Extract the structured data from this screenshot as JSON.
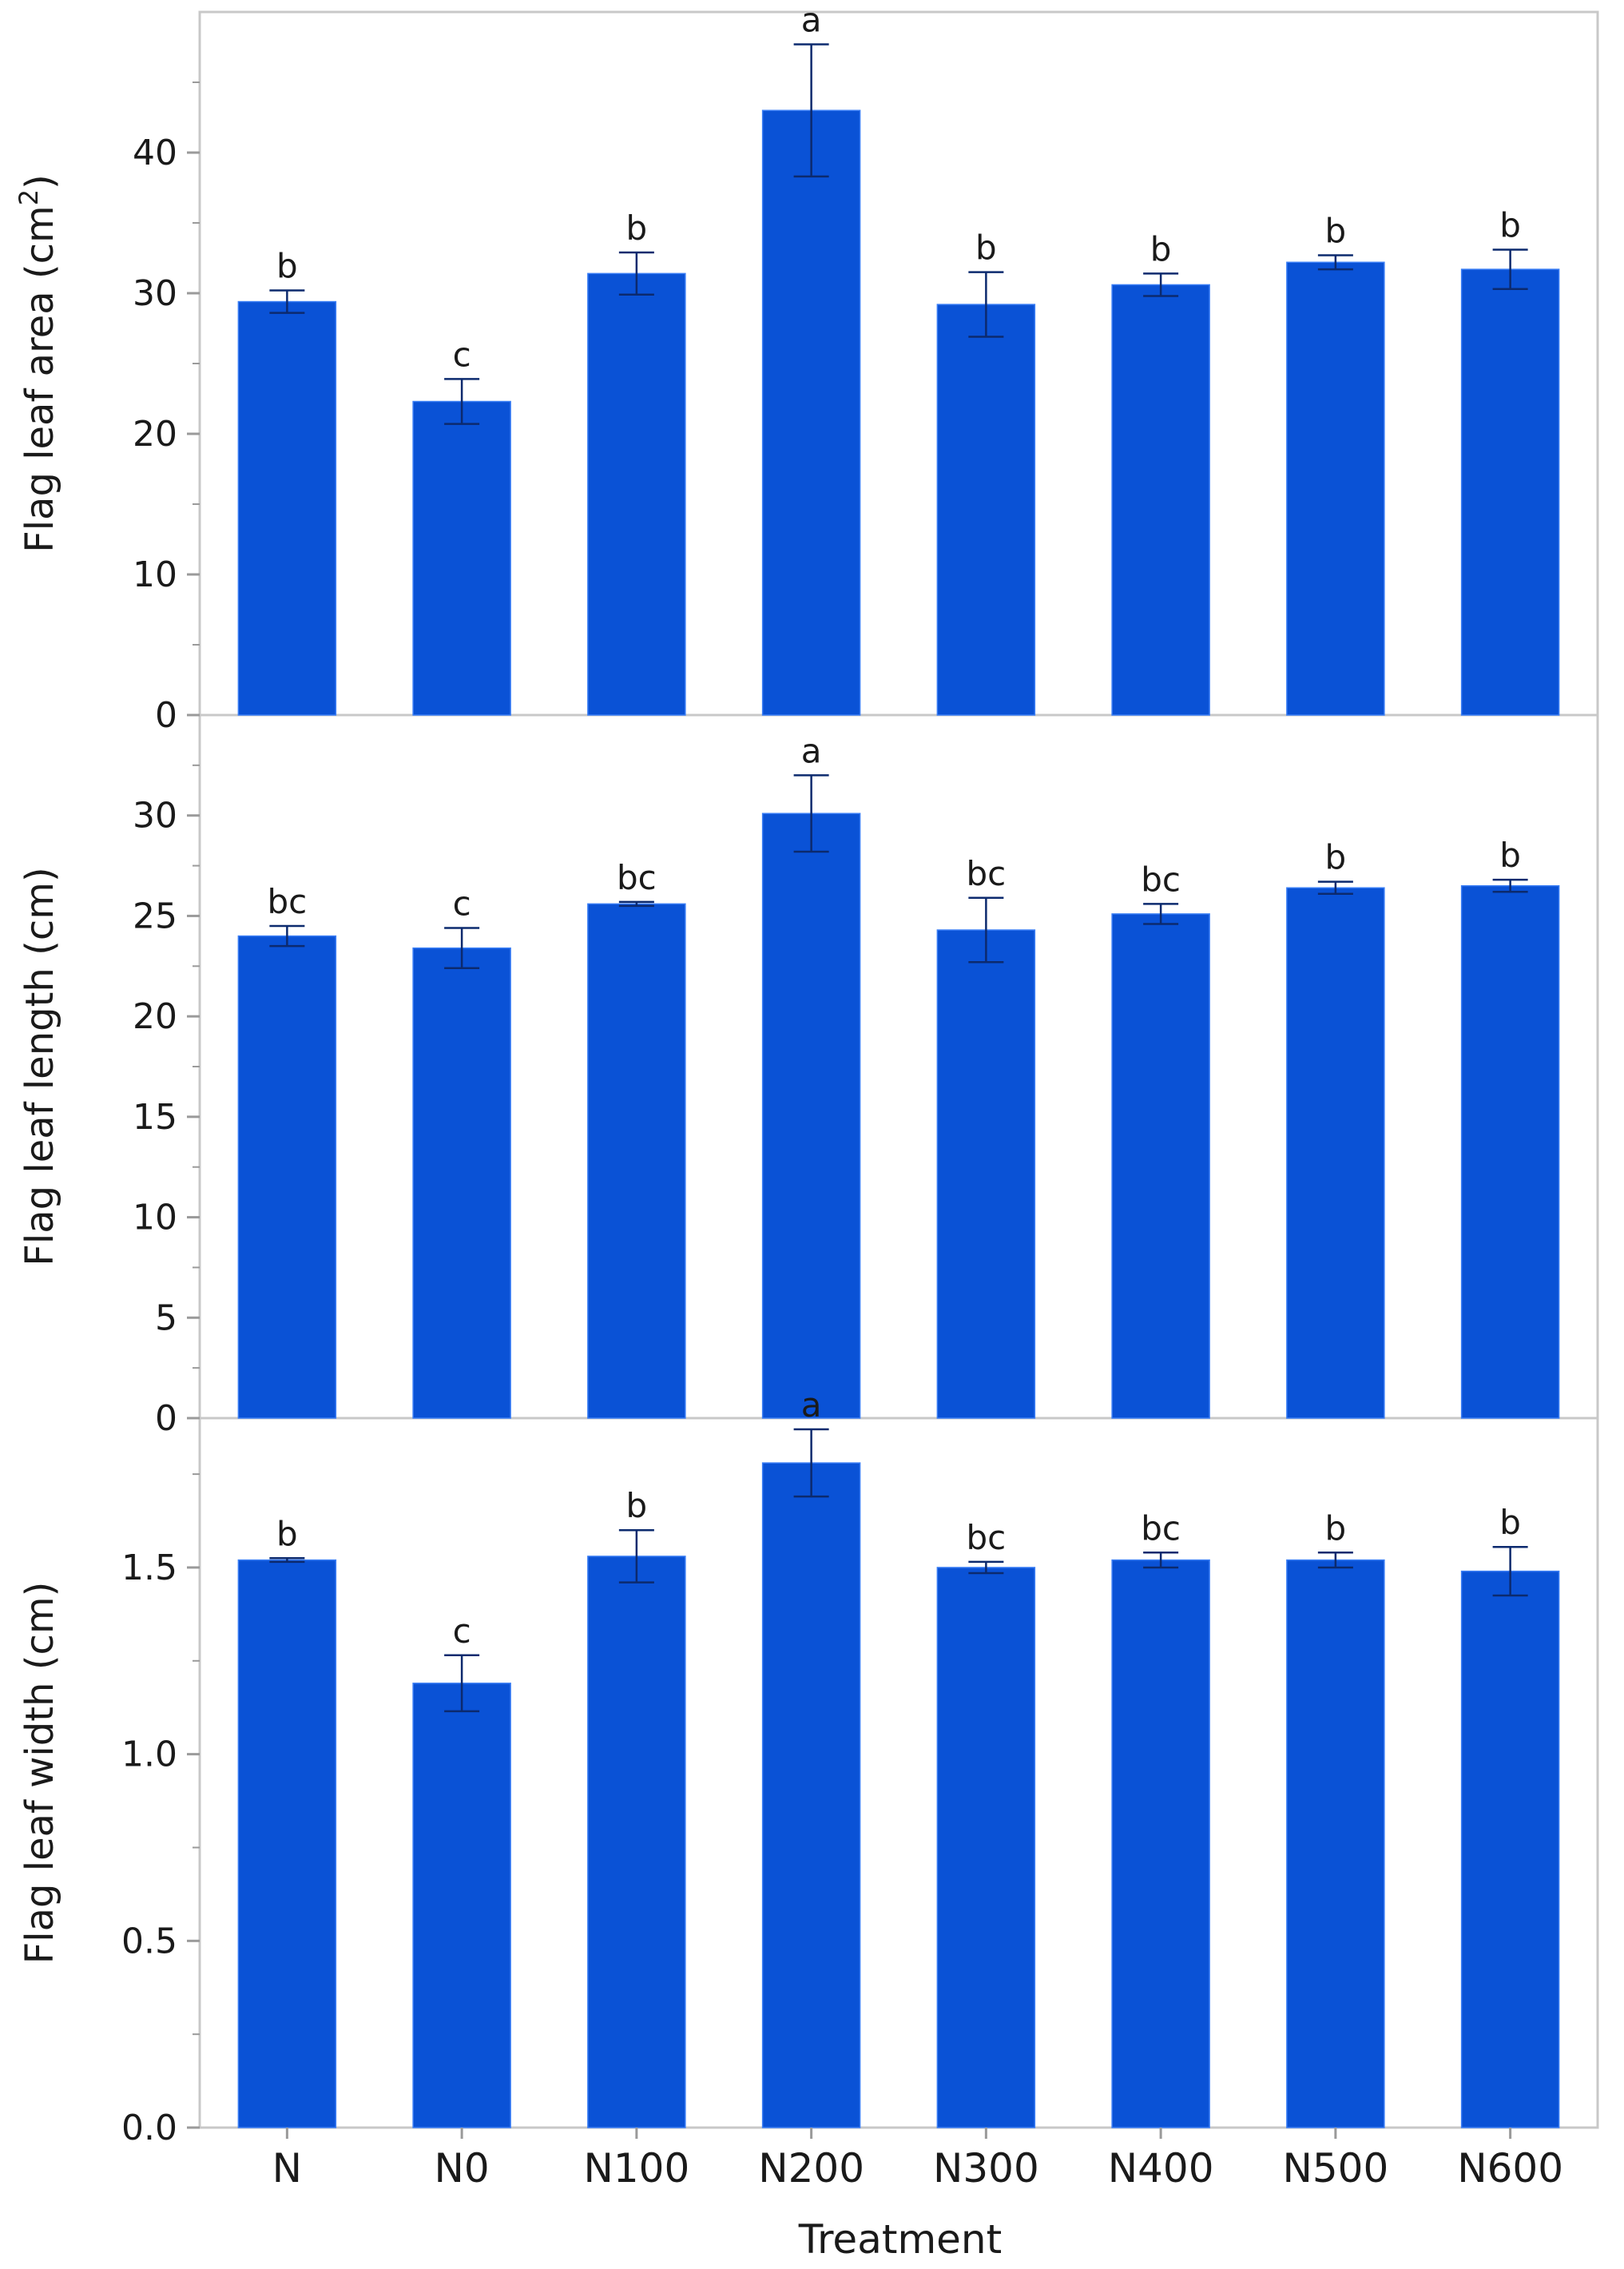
{
  "chart_data": [
    {
      "type": "bar",
      "ylabel": "Flag leaf area (cm",
      "ylabel_superscript": "2",
      "ylabel_suffix": ")",
      "categories": [
        "N",
        "N0",
        "N100",
        "N200",
        "N300",
        "N400",
        "N500",
        "N600"
      ],
      "values": [
        29.4,
        22.3,
        31.4,
        43.0,
        29.2,
        30.6,
        32.2,
        31.7
      ],
      "errors": [
        0.8,
        1.6,
        1.5,
        4.7,
        2.3,
        0.8,
        0.5,
        1.4
      ],
      "letters": [
        "b",
        "c",
        "b",
        "a",
        "b",
        "b",
        "b",
        "b"
      ],
      "ylim": [
        0,
        50
      ],
      "yticks": [
        0,
        10,
        20,
        30,
        40
      ],
      "ytick_labels": [
        "0",
        "10",
        "20",
        "30",
        "40"
      ]
    },
    {
      "type": "bar",
      "ylabel": "Flag leaf length (cm)",
      "categories": [
        "N",
        "N0",
        "N100",
        "N200",
        "N300",
        "N400",
        "N500",
        "N600"
      ],
      "values": [
        24.0,
        23.4,
        25.6,
        30.1,
        24.3,
        25.1,
        26.4,
        26.5
      ],
      "errors": [
        0.5,
        1.0,
        0.1,
        1.9,
        1.6,
        0.5,
        0.3,
        0.3
      ],
      "letters": [
        "bc",
        "c",
        "bc",
        "a",
        "bc",
        "bc",
        "b",
        "b"
      ],
      "ylim": [
        0,
        35
      ],
      "yticks": [
        0,
        5,
        10,
        15,
        20,
        25,
        30
      ],
      "ytick_labels": [
        "0",
        "5",
        "10",
        "15",
        "20",
        "25",
        "30"
      ]
    },
    {
      "type": "bar",
      "ylabel": "Flag leaf width (cm)",
      "categories": [
        "N",
        "N0",
        "N100",
        "N200",
        "N300",
        "N400",
        "N500",
        "N600"
      ],
      "values": [
        1.52,
        1.19,
        1.53,
        1.78,
        1.5,
        1.52,
        1.52,
        1.49
      ],
      "errors": [
        0.005,
        0.075,
        0.07,
        0.09,
        0.015,
        0.02,
        0.02,
        0.065
      ],
      "letters": [
        "b",
        "c",
        "b",
        "a",
        "bc",
        "bc",
        "b",
        "b"
      ],
      "ylim": [
        0,
        1.9
      ],
      "yticks": [
        0,
        0.5,
        1.0,
        1.5
      ],
      "ytick_labels": [
        "0.0",
        "0.5",
        "1.0",
        "1.5"
      ]
    }
  ],
  "xlabel": "Treatment",
  "colors": {
    "bar": "#0a52d6",
    "bar_edge": "#3a7ef5",
    "error": "#0c2a6e",
    "axis": "#9a9a9a",
    "frame": "#c8c8c8"
  }
}
